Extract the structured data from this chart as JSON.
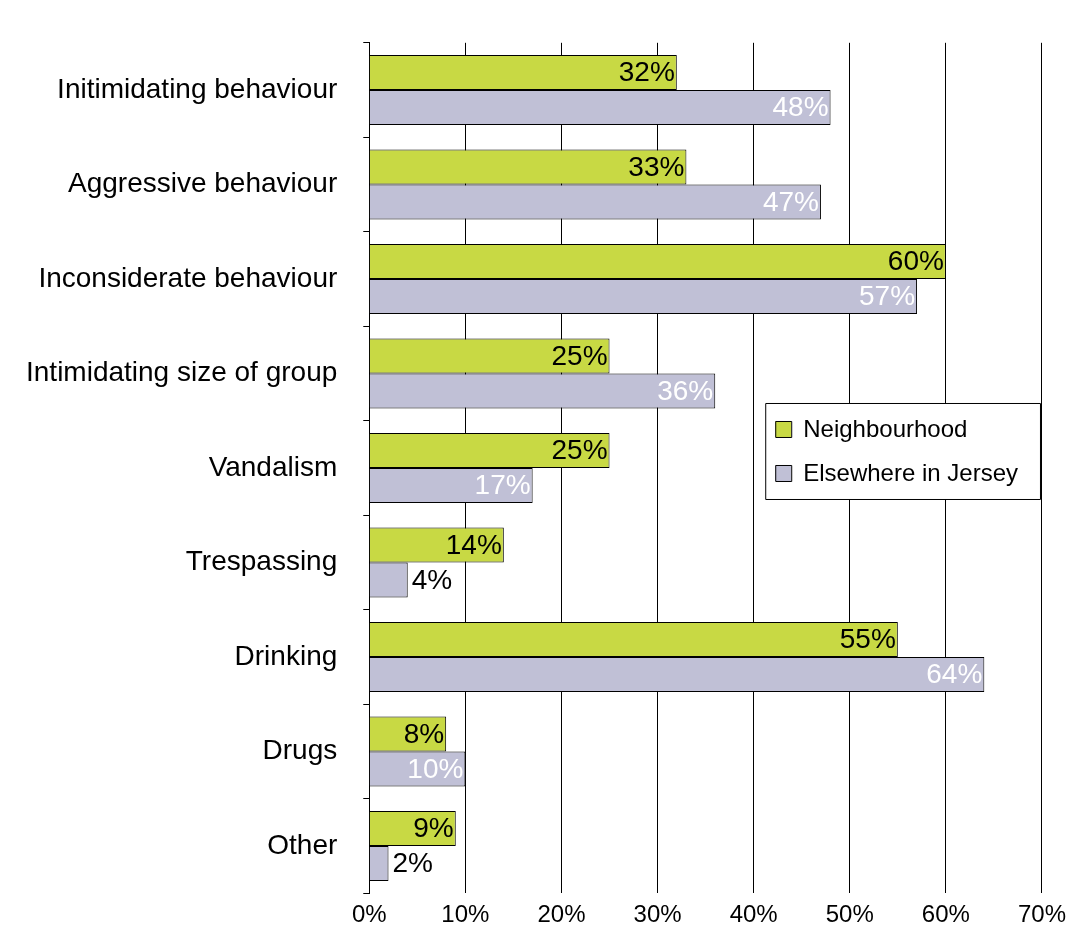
{
  "chart_data": {
    "type": "bar",
    "orientation": "horizontal",
    "categories": [
      "Initimidating behaviour",
      "Aggressive behaviour",
      "Inconsiderate behaviour",
      "Intimidating size of group",
      "Vandalism",
      "Trespassing",
      "Drinking",
      "Drugs",
      "Other"
    ],
    "series": [
      {
        "name": "Neighbourhood",
        "color": "#c8d944",
        "values": [
          32,
          33,
          60,
          25,
          25,
          14,
          55,
          8,
          9
        ],
        "value_labels": [
          "32%",
          "33%",
          "60%",
          "25%",
          "25%",
          "14%",
          "55%",
          "8%",
          "9%"
        ]
      },
      {
        "name": "Elsewhere in Jersey",
        "color": "#c0c0d6",
        "values": [
          48,
          47,
          57,
          36,
          17,
          4,
          64,
          10,
          2
        ],
        "value_labels": [
          "48%",
          "47%",
          "57%",
          "36%",
          "17%",
          "4%",
          "64%",
          "10%",
          "2%"
        ]
      }
    ],
    "xlim": [
      0,
      70
    ],
    "xticks": [
      {
        "value": 0,
        "label": "0%"
      },
      {
        "value": 10,
        "label": "10%"
      },
      {
        "value": 20,
        "label": "20%"
      },
      {
        "value": 30,
        "label": "30%"
      },
      {
        "value": 40,
        "label": "40%"
      },
      {
        "value": 50,
        "label": "50%"
      },
      {
        "value": 60,
        "label": "60%"
      },
      {
        "value": 70,
        "label": "70%"
      }
    ],
    "grid": "x",
    "legend": "right"
  }
}
